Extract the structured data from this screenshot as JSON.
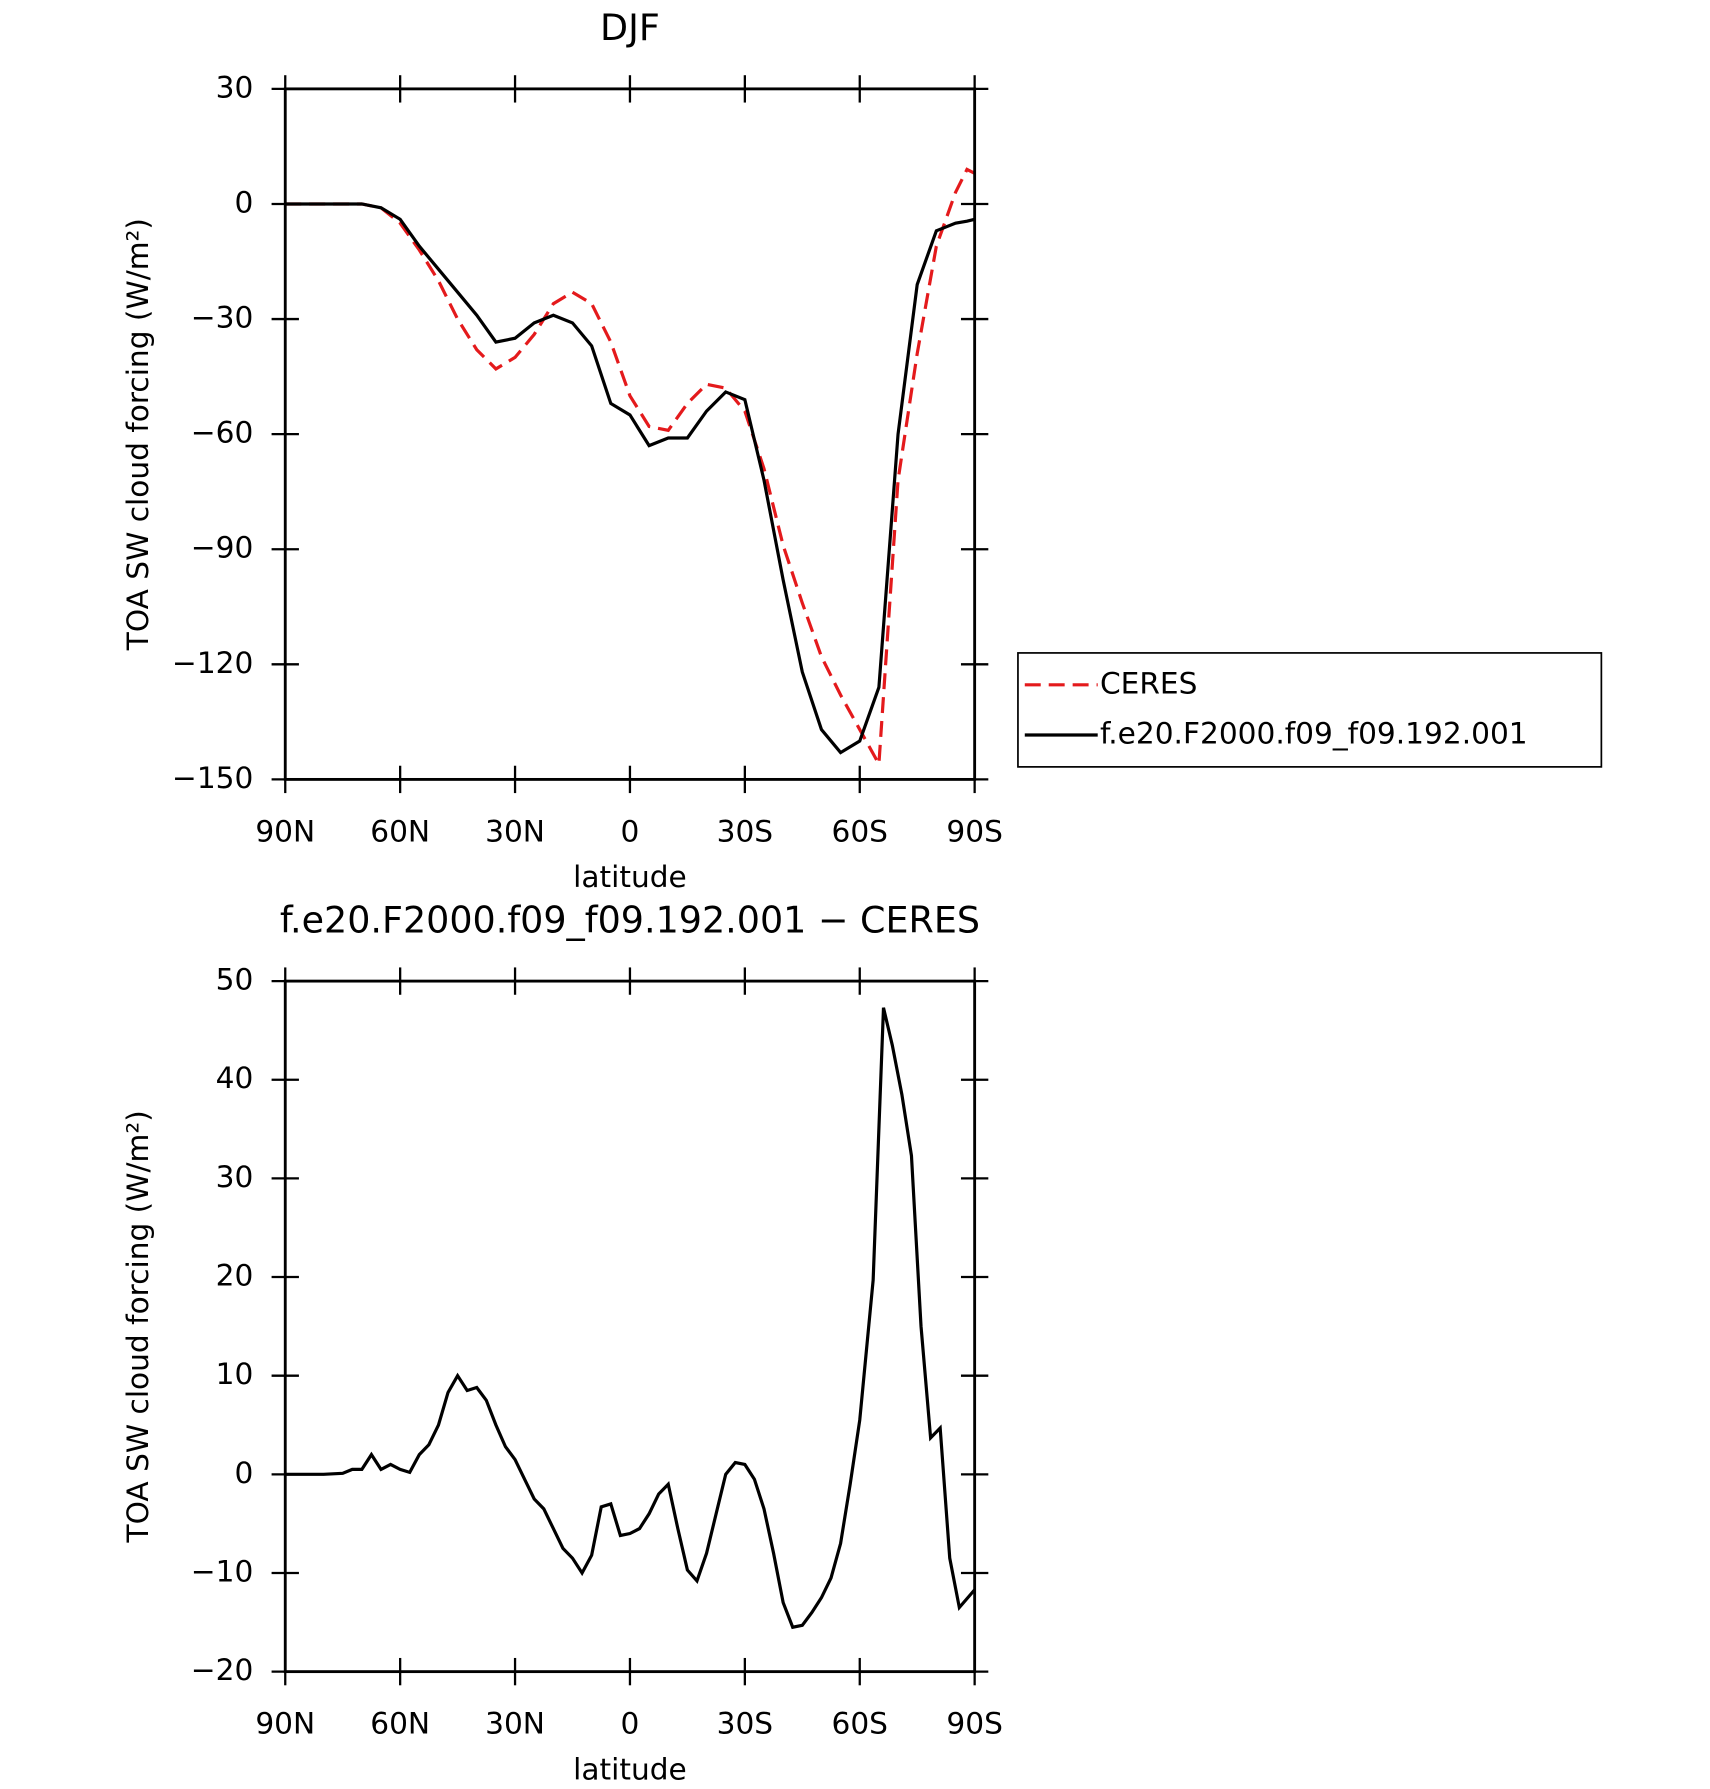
{
  "chart_data": [
    {
      "type": "line",
      "title": "DJF",
      "xlabel": "latitude",
      "ylabel": "TOA SW cloud forcing (W/m²)",
      "x": [
        90,
        85,
        80,
        75,
        70,
        65,
        60,
        55,
        50,
        45,
        40,
        35,
        30,
        25,
        20,
        15,
        10,
        5,
        0,
        -5,
        -10,
        -15,
        -20,
        -25,
        -30,
        -35,
        -40,
        -45,
        -50,
        -55,
        -60,
        -65,
        -70,
        -75,
        -80,
        -85,
        -88,
        -90
      ],
      "series": [
        {
          "name": "CERES",
          "color": "#e41a1c",
          "dash": true,
          "values": [
            0,
            0,
            0,
            0,
            0,
            -1,
            -5,
            -12,
            -20,
            -30,
            -38,
            -43,
            -40,
            -34,
            -26,
            -23,
            -26,
            -36,
            -50,
            -58,
            -59,
            -52,
            -47,
            -48,
            -54,
            -69,
            -89,
            -104,
            -118,
            -128,
            -137,
            -146,
            -72,
            -39,
            -11,
            3,
            9,
            8
          ]
        },
        {
          "name": "f.e20.F2000.f09_f09.192.001",
          "color": "#000000",
          "dash": false,
          "values": [
            0,
            0,
            0,
            0,
            0,
            -1,
            -4,
            -11,
            -17,
            -23,
            -29,
            -36,
            -35,
            -31,
            -29,
            -31,
            -37,
            -52,
            -55,
            -63,
            -61,
            -61,
            -54,
            -49,
            -51,
            -72,
            -98,
            -122,
            -137,
            -143,
            -140,
            -126,
            -60,
            -21,
            -7,
            -5,
            -4.5,
            -4
          ]
        }
      ],
      "xlim": [
        90,
        -90
      ],
      "xticks": [
        {
          "value": 90,
          "label": "90N"
        },
        {
          "value": 60,
          "label": "60N"
        },
        {
          "value": 30,
          "label": "30N"
        },
        0,
        {
          "value": -30,
          "label": "30S"
        },
        {
          "value": -60,
          "label": "60S"
        },
        {
          "value": -90,
          "label": "90S"
        }
      ],
      "ylim": [
        -150,
        30
      ],
      "yticks": [
        30,
        0,
        {
          "value": -30,
          "label": "−30"
        },
        {
          "value": -60,
          "label": "−60"
        },
        {
          "value": -90,
          "label": "−90"
        },
        {
          "value": -120,
          "label": "−120"
        },
        {
          "value": -150,
          "label": "−150"
        }
      ],
      "legend": "right"
    },
    {
      "type": "line",
      "title": "f.e20.F2000.f09_f09.192.001 − CERES",
      "xlabel": "latitude",
      "ylabel": "TOA SW cloud forcing (W/m²)",
      "x": [
        90,
        80,
        75,
        72.5,
        70,
        67.5,
        65,
        62.5,
        60,
        57.5,
        55,
        52.5,
        50,
        47.5,
        45,
        42.5,
        40,
        37.5,
        35,
        32.5,
        30,
        27.5,
        25,
        22.5,
        20,
        17.5,
        15,
        12.5,
        10,
        7.5,
        5,
        2.5,
        0,
        -2.5,
        -5,
        -7.5,
        -10,
        -12.5,
        -15,
        -17.5,
        -20,
        -22.5,
        -25,
        -27.5,
        -30,
        -32.5,
        -35,
        -37.5,
        -40,
        -42.5,
        -45,
        -47.5,
        -50,
        -52.5,
        -55,
        -57.5,
        -60,
        -63.5,
        -66.2,
        -68.5,
        -71,
        -73.5,
        -76,
        -78.5,
        -81,
        -83.5,
        -86,
        -90
      ],
      "values": [
        0,
        0,
        0.1,
        0.5,
        0.5,
        2,
        0.5,
        1,
        0.5,
        0.2,
        2,
        3,
        5,
        8.3,
        10,
        8.5,
        8.8,
        7.5,
        5,
        2.8,
        1.5,
        -0.5,
        -2.5,
        -3.5,
        -5.5,
        -7.5,
        -8.5,
        -10,
        -8.2,
        -3.3,
        -3,
        -6.2,
        -6,
        -5.5,
        -4,
        -2,
        -1,
        -5.5,
        -9.7,
        -10.8,
        -8,
        -4,
        0,
        1.2,
        1,
        -0.5,
        -3.5,
        -8,
        -13,
        -15.5,
        -15.3,
        -14,
        -12.5,
        -10.5,
        -7,
        -1,
        5.5,
        19.7,
        47.3,
        43.5,
        38.5,
        32.3,
        15,
        3.7,
        4.7,
        -8.5,
        -13.5,
        -11.7
      ],
      "color": "#000000",
      "xlim": [
        90,
        -90
      ],
      "xticks": [
        {
          "value": 90,
          "label": "90N"
        },
        {
          "value": 60,
          "label": "60N"
        },
        {
          "value": 30,
          "label": "30N"
        },
        0,
        {
          "value": -30,
          "label": "30S"
        },
        {
          "value": -60,
          "label": "60S"
        },
        {
          "value": -90,
          "label": "90S"
        }
      ],
      "ylim": [
        -20,
        50
      ],
      "yticks": [
        50,
        40,
        30,
        20,
        10,
        0,
        {
          "value": -10,
          "label": "−10"
        },
        {
          "value": -20,
          "label": "−20"
        }
      ]
    }
  ]
}
